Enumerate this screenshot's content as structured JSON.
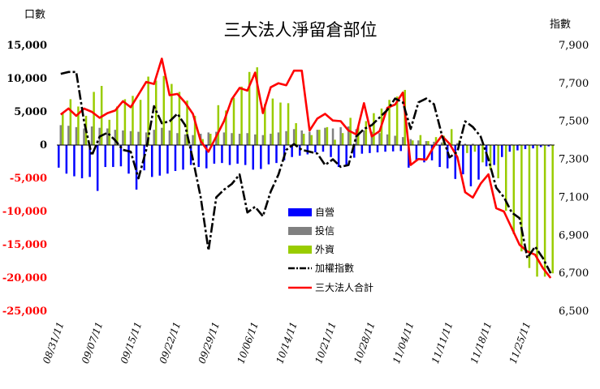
{
  "chart_data": {
    "type": "bar",
    "title": "三大法人淨留倉部位",
    "ylabel_left": "口數",
    "ylabel_right": "指數",
    "ylim_left": [
      -25000,
      15000
    ],
    "ylim_right": [
      6500,
      7900
    ],
    "yticks_left": [
      "15,000",
      "10,000",
      "5,000",
      "0",
      "-5,000",
      "-10,000",
      "-15,000",
      "-20,000",
      "-25,000"
    ],
    "yticks_right": [
      "7,900",
      "7,700",
      "7,500",
      "7,300",
      "7,100",
      "6,900",
      "6,700",
      "6,500"
    ],
    "date_labels": [
      "08/31/11",
      "09/07/11",
      "09/15/11",
      "09/22/11",
      "09/29/11",
      "10/06/11",
      "10/14/11",
      "10/21/11",
      "10/28/11",
      "11/04/11",
      "11/11/11",
      "11/18/11",
      "11/25/11"
    ],
    "date_label_positions": [
      0,
      5,
      10,
      15,
      20,
      25,
      30,
      35,
      40,
      45,
      50,
      55,
      60
    ],
    "legend_position": "center",
    "colors": {
      "dealer": "#0000ff",
      "trust": "#808080",
      "foreign": "#99cc00",
      "index": "#000000",
      "total": "#ff0000"
    },
    "series": [
      {
        "name": "自營",
        "kind": "bar",
        "values": [
          -3400,
          -4300,
          -4700,
          -5000,
          -4800,
          -6900,
          -3300,
          -3300,
          -3200,
          -4300,
          -6700,
          -3800,
          -4800,
          -4600,
          -4300,
          -3900,
          -3700,
          -3000,
          -3300,
          -3500,
          -2800,
          -2700,
          -3000,
          -2800,
          -3000,
          -3700,
          -3600,
          -2900,
          -2700,
          -2300,
          -1800,
          -1600,
          -1400,
          -1100,
          -1000,
          -1800,
          -3300,
          -3200,
          -1900,
          -1300,
          -1200,
          -1100,
          -1000,
          -950,
          -900,
          -3400,
          -2400,
          -2600,
          -2300,
          -3300,
          -3500,
          -5100,
          -4400,
          -6200,
          -5200,
          -3200,
          -3000,
          -1800,
          -1000,
          -800,
          -600,
          -500,
          -300,
          -200
        ]
      },
      {
        "name": "投信",
        "kind": "bar",
        "values": [
          3000,
          2900,
          2700,
          2500,
          2800,
          2600,
          2500,
          2300,
          2200,
          2100,
          2000,
          1900,
          2300,
          2600,
          2200,
          1800,
          1600,
          1500,
          1700,
          1900,
          2000,
          1900,
          1800,
          1700,
          1800,
          1600,
          1500,
          1700,
          1900,
          2100,
          2400,
          2200,
          2000,
          2300,
          2600,
          2500,
          2700,
          2800,
          2400,
          2200,
          2000,
          1800,
          1600,
          1400,
          1200,
          900,
          700,
          600,
          500,
          400,
          300,
          300,
          200,
          200,
          200,
          100,
          100,
          100,
          100,
          100,
          100,
          100,
          100,
          100
        ]
      },
      {
        "name": "外資",
        "kind": "bar",
        "values": [
          4800,
          6900,
          5800,
          4400,
          8000,
          8900,
          3800,
          5800,
          6900,
          7400,
          6800,
          10300,
          9700,
          10400,
          9200,
          8000,
          6700,
          4400,
          900,
          1700,
          6000,
          5200,
          7100,
          8800,
          11000,
          11700,
          6200,
          7000,
          6400,
          6300,
          3300,
          1700,
          1500,
          2300,
          2700,
          800,
          1800,
          4100,
          2700,
          3600,
          4800,
          5500,
          6800,
          7300,
          8300,
          700,
          1500,
          600,
          1200,
          1400,
          2400,
          700,
          -1200,
          -1000,
          -2600,
          -3700,
          -5000,
          -9900,
          -13400,
          -16000,
          -18500,
          -19800,
          -19800,
          -19300
        ]
      },
      {
        "name": "加權指數",
        "kind": "line",
        "values": [
          7750,
          7760,
          7760,
          7500,
          7320,
          7420,
          7440,
          7400,
          7350,
          7340,
          7200,
          7350,
          7580,
          7490,
          7500,
          7540,
          7480,
          7300,
          7100,
          6820,
          7100,
          7140,
          7170,
          7220,
          7020,
          7050,
          7000,
          7130,
          7220,
          7350,
          7380,
          7350,
          7340,
          7330,
          7270,
          7300,
          7260,
          7270,
          7420,
          7460,
          7480,
          7520,
          7560,
          7620,
          7600,
          7460,
          7600,
          7620,
          7590,
          7430,
          7310,
          7340,
          7500,
          7470,
          7420,
          7300,
          7150,
          7100,
          7020,
          6990,
          6780,
          6840,
          6780,
          6700
        ]
      },
      {
        "name": "三大法人合計",
        "kind": "line",
        "values": [
          4600,
          5500,
          4400,
          5500,
          5000,
          4100,
          4800,
          5200,
          6600,
          5700,
          7600,
          9500,
          9200,
          13000,
          7500,
          7700,
          6400,
          4700,
          600,
          -1000,
          1300,
          3600,
          6900,
          8600,
          8200,
          10900,
          4800,
          8700,
          9300,
          9000,
          11200,
          11200,
          2200,
          4000,
          4700,
          3700,
          3600,
          2200,
          1600,
          6300,
          1300,
          2100,
          5600,
          6100,
          7900,
          -3000,
          -2100,
          -2200,
          -200,
          1400,
          200,
          -1800,
          -7100,
          -7900,
          -5800,
          -4400,
          -9500,
          -10000,
          -12500,
          -15000,
          -16000,
          -16500,
          -18500,
          -20000
        ]
      }
    ]
  }
}
